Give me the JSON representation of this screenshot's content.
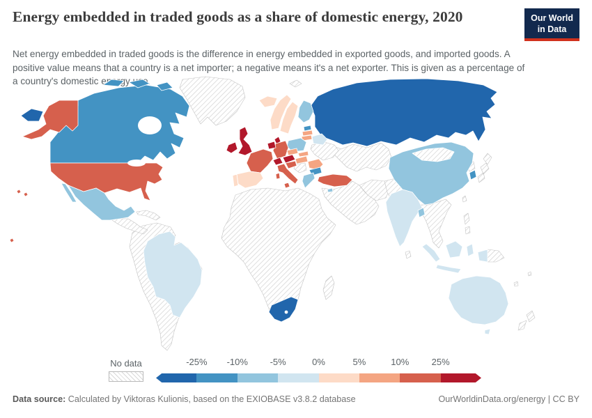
{
  "header": {
    "title": "Energy embedded in traded goods as a share of domestic energy, 2020",
    "subtitle": "Net energy embedded in traded goods is the difference in energy embedded in exported goods, and imported goods. A positive value means that a country is a net importer; a negative means it's a net exporter. This is given as a percentage of a country's domestic energy use.",
    "logo": {
      "line1": "Our World",
      "line2": "in Data",
      "bg": "#12294e",
      "accent": "#d0311d"
    }
  },
  "legend": {
    "no_data_label": "No data",
    "tick_labels": [
      "-25%",
      "-10%",
      "-5%",
      "0%",
      "5%",
      "10%",
      "25%"
    ],
    "colors": [
      "#2166ac",
      "#4393c3",
      "#92c5de",
      "#d1e5f0",
      "#fddbc7",
      "#f4a582",
      "#d6604d",
      "#b2182b"
    ]
  },
  "footer": {
    "datasource_label": "Data source:",
    "datasource_text": " Calculated by Viktoras Kulionis, based on the EXIOBASE v3.8.2 database",
    "link": "OurWorldinData.org/energy",
    "separator": " | ",
    "license": "CC BY"
  },
  "chart_data": {
    "type": "choropleth",
    "title": "Energy embedded in traded goods as a share of domestic energy, 2020",
    "unit": "% of domestic energy use",
    "legend_position": "bottom",
    "bins": {
      "lt-n25": {
        "label": "less than -25%",
        "color": "#2166ac"
      },
      "n25-n10": {
        "label": "-25% to -10%",
        "color": "#4393c3"
      },
      "n10-n5": {
        "label": "-10% to -5%",
        "color": "#92c5de"
      },
      "n5-0": {
        "label": "-5% to 0%",
        "color": "#d1e5f0"
      },
      "0-5": {
        "label": "0% to 5%",
        "color": "#fddbc7"
      },
      "5-10": {
        "label": "5% to 10%",
        "color": "#f4a582"
      },
      "10-25": {
        "label": "10% to 25%",
        "color": "#d6604d"
      },
      "gt25": {
        "label": "more than 25%",
        "color": "#b2182b"
      },
      "no-data": {
        "label": "No data",
        "color": "hatch"
      }
    },
    "countries": {
      "russia": "lt-n25",
      "south-africa": "lt-n25",
      "canada": "n25-n10",
      "south-korea": "n25-n10",
      "bulgaria": "n25-n10",
      "estonia": "n25-n10",
      "mexico": "n10-n5",
      "china": "n10-n5",
      "finland": "n10-n5",
      "poland": "n10-n5",
      "greece": "n10-n5",
      "cyprus": "n10-n5",
      "bangladesh": "n10-n5",
      "brazil": "n5-0",
      "india": "n5-0",
      "australia": "n5-0",
      "indonesia": "n5-0",
      "belarus": "n5-0",
      "norway": "0-5",
      "sweden": "0-5",
      "iceland": "0-5",
      "spain": "0-5",
      "portugal": "0-5",
      "czechia": "5-10",
      "slovakia": "5-10",
      "hungary": "5-10",
      "romania": "5-10",
      "latvia": "5-10",
      "lithuania": "5-10",
      "usa": "10-25",
      "france": "10-25",
      "germany": "10-25",
      "italy": "10-25",
      "turkey": "10-25",
      "croatia": "10-25",
      "uk": "gt25",
      "ireland": "gt25",
      "denmark": "gt25",
      "switzerland": "gt25",
      "austria": "gt25",
      "benelux": "gt25",
      "greenland": "no-data",
      "ukraine": "no-data",
      "kazakhstan": "no-data",
      "middle-east": "no-data",
      "iran": "no-data",
      "afghanistan-pakistan": "no-data",
      "mongolia": "no-data",
      "japan": "no-data",
      "north-korea": "no-data",
      "se-asia": "no-data",
      "philippines": "no-data",
      "papua-new-guinea": "no-data",
      "new-zealand": "no-data",
      "madagascar": "no-data",
      "africa": "no-data",
      "south-america": "no-data",
      "central-america": "no-data",
      "caribbean": "no-data",
      "sri-lanka": "no-data",
      "balkans": "no-data",
      "svalbard": "no-data",
      "pacific-islands": "no-data",
      "taiwan": "no-data"
    }
  }
}
